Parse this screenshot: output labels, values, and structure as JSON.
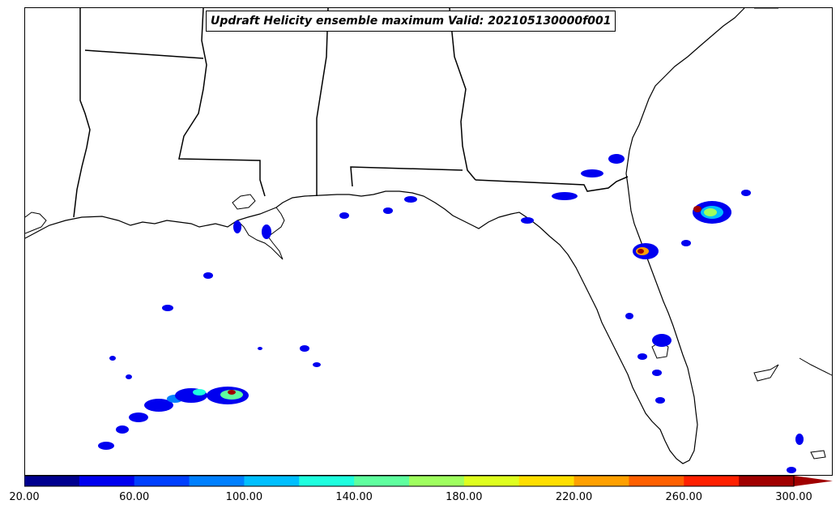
{
  "title": "Updraft Helicity ensemble maximum Valid: 202105130000f001",
  "colorbar": {
    "tick_labels": [
      "20.00",
      "60.00",
      "100.00",
      "140.00",
      "180.00",
      "220.00",
      "260.00",
      "300.00"
    ],
    "colors": [
      "#00008f",
      "#0000ef",
      "#0040ff",
      "#0080ff",
      "#00bfff",
      "#1fffdf",
      "#5fff9f",
      "#9fff5f",
      "#dfff1f",
      "#ffdf00",
      "#ffa000",
      "#ff6000",
      "#ff2000",
      "#a00000"
    ],
    "extend": "max"
  },
  "map": {
    "region": "Gulf of Mexico / Southeastern United States",
    "coastline_color": "#000000",
    "state_border_color": "#000000"
  }
}
